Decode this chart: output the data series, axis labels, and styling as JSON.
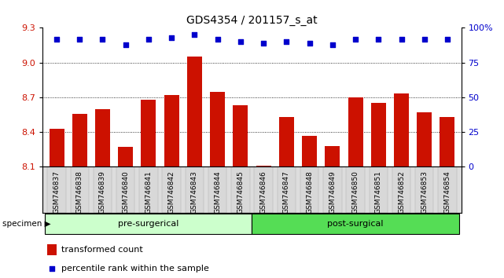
{
  "title": "GDS4354 / 201157_s_at",
  "samples": [
    "GSM746837",
    "GSM746838",
    "GSM746839",
    "GSM746840",
    "GSM746841",
    "GSM746842",
    "GSM746843",
    "GSM746844",
    "GSM746845",
    "GSM746846",
    "GSM746847",
    "GSM746848",
    "GSM746849",
    "GSM746850",
    "GSM746851",
    "GSM746852",
    "GSM746853",
    "GSM746854"
  ],
  "bar_values": [
    8.43,
    8.56,
    8.6,
    8.27,
    8.68,
    8.72,
    9.05,
    8.75,
    8.63,
    8.11,
    8.53,
    8.37,
    8.28,
    8.7,
    8.65,
    8.73,
    8.57,
    8.53
  ],
  "percentile_values": [
    92,
    92,
    92,
    88,
    92,
    93,
    95,
    92,
    90,
    89,
    90,
    89,
    88,
    92,
    92,
    92,
    92,
    92
  ],
  "ylim_left": [
    8.1,
    9.3
  ],
  "ylim_right": [
    0,
    100
  ],
  "yticks_left": [
    8.1,
    8.4,
    8.7,
    9.0,
    9.3
  ],
  "yticks_right": [
    0,
    25,
    50,
    75,
    100
  ],
  "ytick_labels_right": [
    "0",
    "25",
    "50",
    "75",
    "100%"
  ],
  "bar_color": "#cc1100",
  "dot_color": "#0000cc",
  "pre_surgical_count": 9,
  "post_surgical_count": 9,
  "pre_color": "#ccffcc",
  "post_color": "#55dd55",
  "group_label_pre": "pre-surgerical",
  "group_label_post": "post-surgical",
  "specimen_label": "specimen",
  "legend_bar_label": "transformed count",
  "legend_dot_label": "percentile rank within the sample",
  "bg_color": "#ffffff",
  "tick_label_color_left": "#cc1100",
  "tick_label_color_right": "#0000cc",
  "bar_width": 0.65
}
